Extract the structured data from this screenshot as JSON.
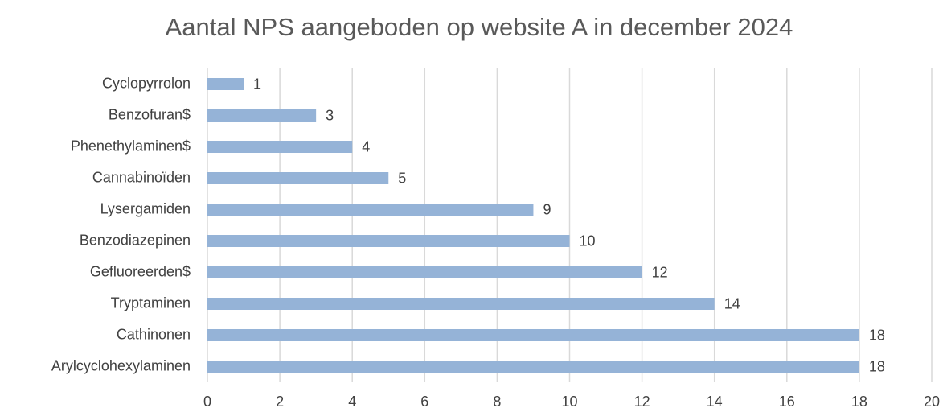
{
  "chart_data": {
    "type": "bar",
    "orientation": "horizontal",
    "title": "Aantal NPS aangeboden op website A in december 2024",
    "categories": [
      "Cyclopyrrolon",
      "Benzofuran$",
      "Phenethylaminen$",
      "Cannabinoïden",
      "Lysergamiden",
      "Benzodiazepinen",
      "Gefluoreerden$",
      "Tryptaminen",
      "Cathinonen",
      "Arylcyclohexylaminen"
    ],
    "values": [
      1,
      3,
      4,
      5,
      9,
      10,
      12,
      14,
      18,
      18
    ],
    "color": "#95b3d7",
    "xlim": [
      0,
      20
    ],
    "xticks": [
      0,
      2,
      4,
      6,
      8,
      10,
      12,
      14,
      16,
      18,
      20
    ],
    "grid": true
  }
}
